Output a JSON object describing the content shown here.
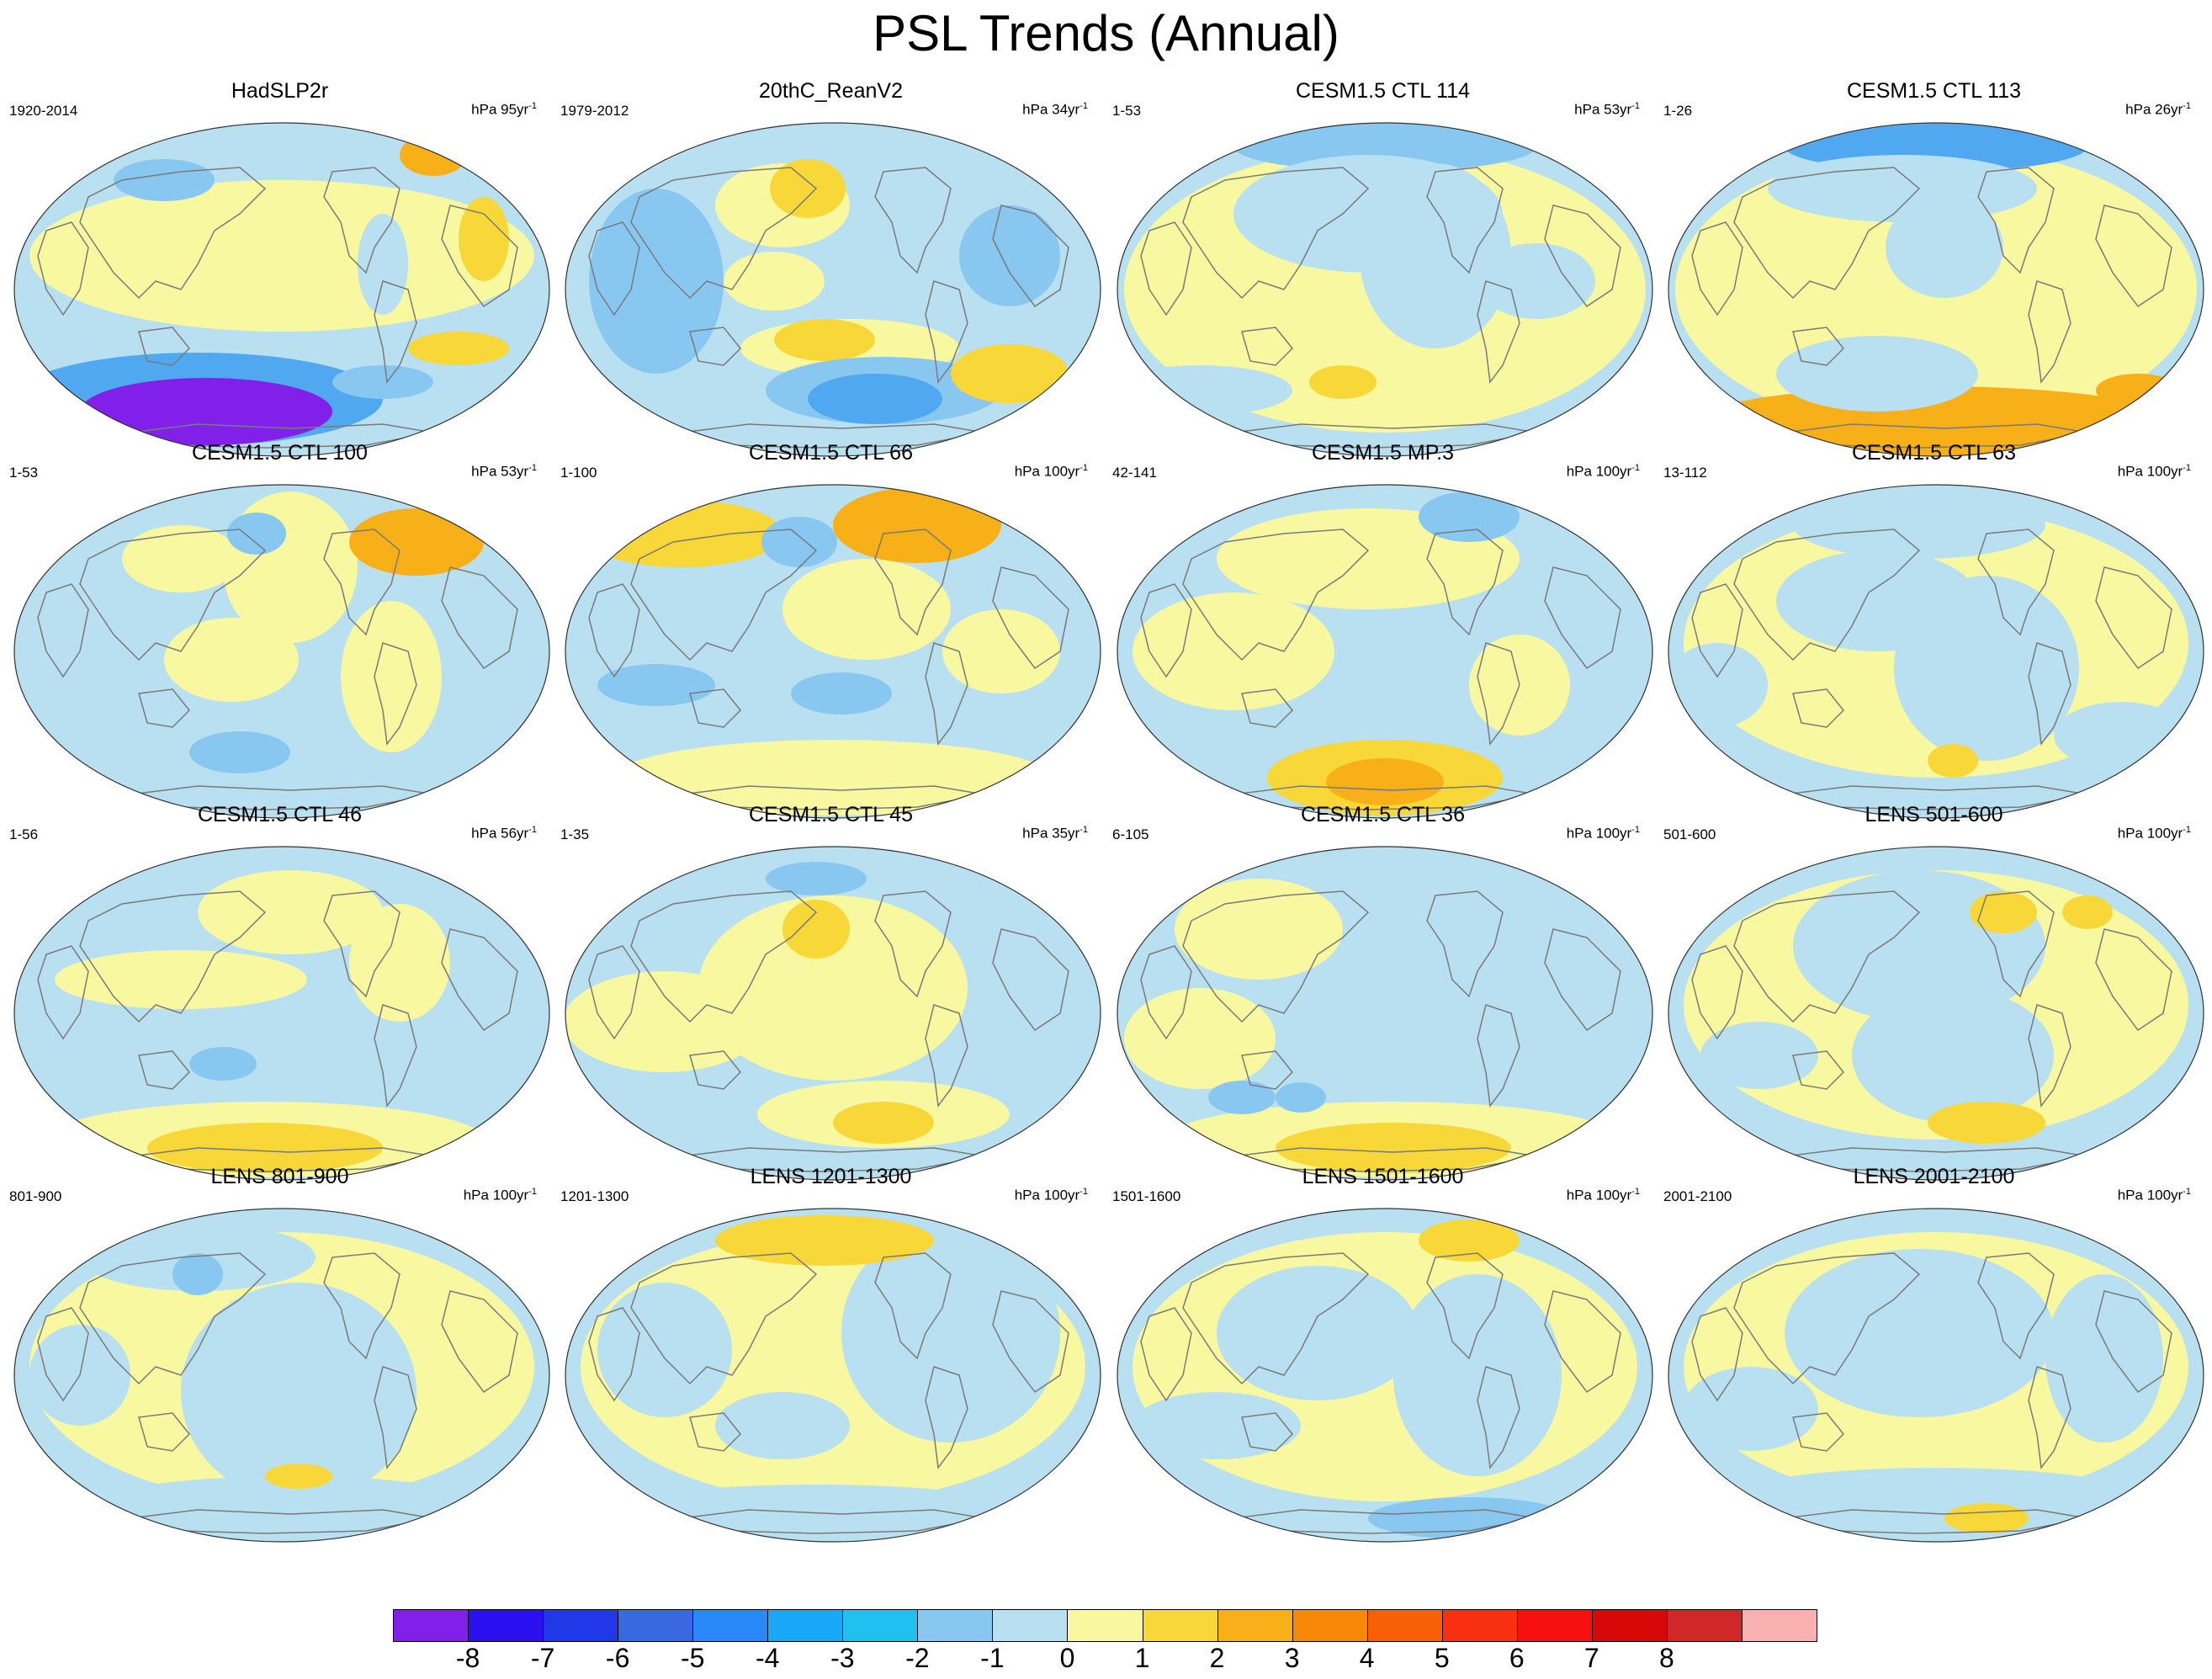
{
  "title": "PSL Trends (Annual)",
  "units_base": "hPa",
  "units_suffix": "yr",
  "units_exp": "-1",
  "panels": [
    {
      "title": "HadSLP2r",
      "years": "1920-2014",
      "span": "95",
      "variant": "obs1"
    },
    {
      "title": "20thC_ReanV2",
      "years": "1979-2012",
      "span": "34",
      "variant": "obs2"
    },
    {
      "title": "CESM1.5 CTL 114",
      "years": "1-53",
      "span": "53",
      "variant": "a"
    },
    {
      "title": "CESM1.5 CTL 113",
      "years": "1-26",
      "span": "26",
      "variant": "b"
    },
    {
      "title": "CESM1.5 CTL 100",
      "years": "1-53",
      "span": "53",
      "variant": "c"
    },
    {
      "title": "CESM1.5 CTL 66",
      "years": "1-100",
      "span": "100",
      "variant": "d"
    },
    {
      "title": "CESM1.5 MP.3",
      "years": "42-141",
      "span": "100",
      "variant": "e"
    },
    {
      "title": "CESM1.5 CTL 63",
      "years": "13-112",
      "span": "100",
      "variant": "f"
    },
    {
      "title": "CESM1.5 CTL 46",
      "years": "1-56",
      "span": "56",
      "variant": "g"
    },
    {
      "title": "CESM1.5 CTL 45",
      "years": "1-35",
      "span": "35",
      "variant": "h"
    },
    {
      "title": "CESM1.5 CTL 36",
      "years": "6-105",
      "span": "100",
      "variant": "i"
    },
    {
      "title": "LENS 501-600",
      "years": "501-600",
      "span": "100",
      "variant": "j"
    },
    {
      "title": "LENS 801-900",
      "years": "801-900",
      "span": "100",
      "variant": "k"
    },
    {
      "title": "LENS 1201-1300",
      "years": "1201-1300",
      "span": "100",
      "variant": "l"
    },
    {
      "title": "LENS 1501-1600",
      "years": "1501-1600",
      "span": "100",
      "variant": "m"
    },
    {
      "title": "LENS 2001-2100",
      "years": "2001-2100",
      "span": "100",
      "variant": "n"
    }
  ],
  "colorbar": {
    "labels": [
      "-8",
      "-7",
      "-6",
      "-5",
      "-4",
      "-3",
      "-2",
      "-1",
      "0",
      "1",
      "2",
      "3",
      "4",
      "5",
      "6",
      "7",
      "8"
    ],
    "colors": [
      "#8020e8",
      "#2a10f0",
      "#2038e8",
      "#3a68e0",
      "#2888f8",
      "#18a8f8",
      "#20c0f0",
      "#88c8f0",
      "#b8e0f0",
      "#f8f8a0",
      "#f8d838",
      "#f8b018",
      "#f88808",
      "#f86008",
      "#f83010",
      "#f81010",
      "#d80808",
      "#d02828",
      "#f8b0b0"
    ]
  },
  "palette": {
    "land_outline": "#7a7a7a",
    "neg1": "#b8e0f0",
    "pos1": "#f8f8a0",
    "neg2": "#88c8f0",
    "pos2": "#f8d838",
    "neg3": "#50a8f0",
    "pos3": "#f8b018",
    "deep_neg": "#8020e8"
  }
}
